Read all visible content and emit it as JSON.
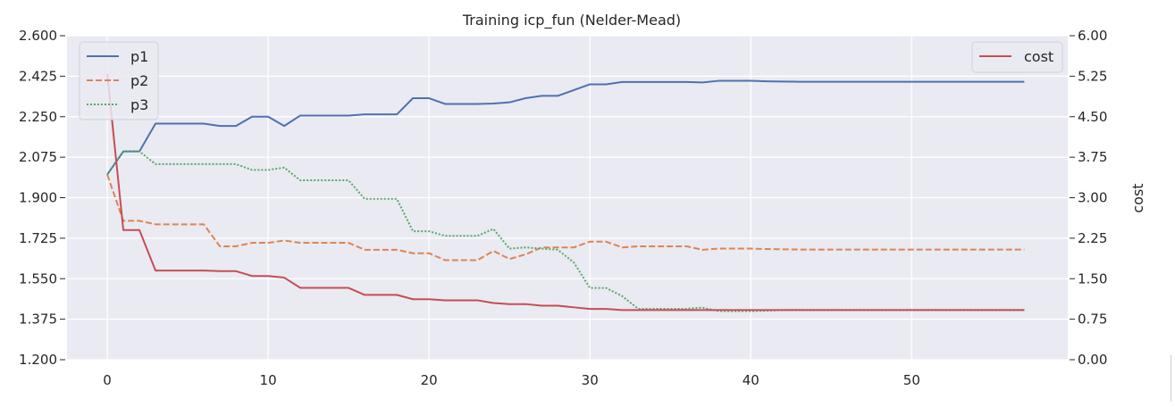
{
  "chart_data": {
    "type": "line",
    "title": "Training icp_fun (Nelder-Mead)",
    "xlabel": "",
    "ylabel_left": "",
    "ylabel_right": "cost",
    "xlim": [
      -2.5,
      59.7
    ],
    "ylim_left": [
      1.2,
      2.6
    ],
    "ylim_right": [
      0.0,
      6.0
    ],
    "x_ticks": [
      0,
      10,
      20,
      30,
      40,
      50
    ],
    "y_ticks_left": [
      "1.200",
      "1.375",
      "1.550",
      "1.725",
      "1.900",
      "2.075",
      "2.250",
      "2.425",
      "2.600"
    ],
    "y_ticks_right": [
      "0.00",
      "0.75",
      "1.50",
      "2.25",
      "3.00",
      "3.75",
      "4.50",
      "5.25",
      "6.00"
    ],
    "grid": true,
    "legend_left": {
      "placement": "top-left",
      "entries": [
        "p1",
        "p2",
        "p3"
      ]
    },
    "legend_right": {
      "placement": "top-right",
      "entries": [
        "cost"
      ]
    },
    "x": [
      0,
      1,
      2,
      3,
      4,
      5,
      6,
      7,
      8,
      9,
      10,
      11,
      12,
      13,
      14,
      15,
      16,
      17,
      18,
      19,
      20,
      21,
      22,
      23,
      24,
      25,
      26,
      27,
      28,
      29,
      30,
      31,
      32,
      33,
      34,
      35,
      36,
      37,
      38,
      39,
      40,
      41,
      42,
      43,
      44,
      45,
      46,
      47,
      48,
      49,
      50,
      51,
      52,
      53,
      54,
      55,
      56,
      57
    ],
    "series": [
      {
        "name": "p1",
        "axis": "left",
        "color": "#4c72b0",
        "dash": "solid",
        "values": [
          2.0,
          2.1,
          2.1,
          2.22,
          2.22,
          2.22,
          2.22,
          2.21,
          2.21,
          2.25,
          2.25,
          2.21,
          2.255,
          2.255,
          2.255,
          2.255,
          2.26,
          2.26,
          2.26,
          2.33,
          2.33,
          2.305,
          2.305,
          2.305,
          2.307,
          2.312,
          2.33,
          2.34,
          2.34,
          2.365,
          2.39,
          2.39,
          2.4,
          2.4,
          2.4,
          2.4,
          2.4,
          2.398,
          2.405,
          2.405,
          2.405,
          2.403,
          2.402,
          2.401,
          2.401,
          2.401,
          2.401,
          2.401,
          2.401,
          2.401,
          2.401,
          2.401,
          2.401,
          2.401,
          2.401,
          2.401,
          2.401,
          2.401
        ]
      },
      {
        "name": "p2",
        "axis": "left",
        "color": "#dd8452",
        "dash": "dashed",
        "values": [
          2.0,
          1.8,
          1.8,
          1.785,
          1.785,
          1.785,
          1.785,
          1.69,
          1.69,
          1.705,
          1.705,
          1.715,
          1.705,
          1.705,
          1.705,
          1.705,
          1.675,
          1.675,
          1.675,
          1.66,
          1.66,
          1.63,
          1.63,
          1.63,
          1.67,
          1.635,
          1.655,
          1.685,
          1.685,
          1.685,
          1.71,
          1.71,
          1.685,
          1.69,
          1.69,
          1.69,
          1.69,
          1.675,
          1.68,
          1.68,
          1.68,
          1.678,
          1.677,
          1.676,
          1.676,
          1.676,
          1.676,
          1.676,
          1.676,
          1.676,
          1.676,
          1.676,
          1.676,
          1.676,
          1.676,
          1.676,
          1.676,
          1.676
        ]
      },
      {
        "name": "p3",
        "axis": "left",
        "color": "#55a868",
        "dash": "dotted",
        "values": [
          2.0,
          2.1,
          2.1,
          2.045,
          2.045,
          2.045,
          2.045,
          2.045,
          2.045,
          2.02,
          2.02,
          2.03,
          1.975,
          1.975,
          1.975,
          1.975,
          1.895,
          1.895,
          1.895,
          1.755,
          1.755,
          1.735,
          1.735,
          1.735,
          1.765,
          1.68,
          1.685,
          1.68,
          1.675,
          1.62,
          1.51,
          1.51,
          1.475,
          1.42,
          1.42,
          1.42,
          1.42,
          1.425,
          1.41,
          1.41,
          1.41,
          1.412,
          1.415,
          1.415,
          1.415,
          1.415,
          1.415,
          1.415,
          1.415,
          1.415,
          1.415,
          1.415,
          1.415,
          1.415,
          1.415,
          1.415,
          1.415,
          1.415
        ]
      },
      {
        "name": "cost",
        "axis": "right",
        "color": "#c44e52",
        "dash": "solid",
        "values": [
          5.3,
          2.4,
          2.4,
          1.65,
          1.65,
          1.65,
          1.65,
          1.64,
          1.64,
          1.55,
          1.55,
          1.52,
          1.33,
          1.33,
          1.33,
          1.33,
          1.2,
          1.2,
          1.2,
          1.12,
          1.12,
          1.1,
          1.1,
          1.1,
          1.05,
          1.03,
          1.03,
          1.0,
          1.0,
          0.97,
          0.94,
          0.94,
          0.92,
          0.92,
          0.92,
          0.92,
          0.92,
          0.92,
          0.92,
          0.92,
          0.92,
          0.92,
          0.92,
          0.92,
          0.92,
          0.92,
          0.92,
          0.92,
          0.92,
          0.92,
          0.92,
          0.92,
          0.92,
          0.92,
          0.92,
          0.92,
          0.92,
          0.92
        ]
      }
    ]
  }
}
